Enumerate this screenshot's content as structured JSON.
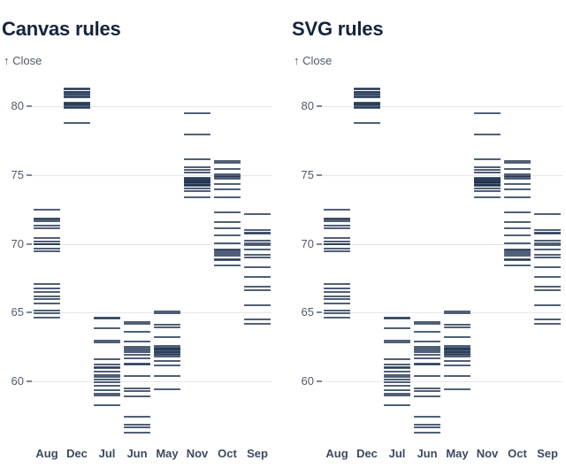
{
  "page": {
    "background": "#ffffff"
  },
  "colors": {
    "title": "#15233c",
    "axis_text": "#4f5a6d",
    "month_label": "#3c4a60",
    "gridline": "#e4e7ec",
    "tick_dash": "#7e8795",
    "tick_mark": "#1f3350",
    "tick_opacity": 0.78
  },
  "chart_data": [
    {
      "type": "tick",
      "title": "Canvas rules",
      "ylabel": "↑ Close",
      "renderer": "canvas",
      "grid": true,
      "ylim": [
        56,
        82
      ],
      "yticks": [
        60,
        65,
        70,
        75,
        80
      ],
      "categories": [
        "Aug",
        "Dec",
        "Jul",
        "Jun",
        "May",
        "Nov",
        "Oct",
        "Sep"
      ],
      "values_by_month": {
        "Aug": [
          72.5,
          71.85,
          71.8,
          71.65,
          71.35,
          71.1,
          70.45,
          70.15,
          70.0,
          69.95,
          69.65,
          69.45,
          67.05,
          66.75,
          66.5,
          66.2,
          65.95,
          65.65,
          65.15,
          64.95,
          64.65
        ],
        "Dec": [
          81.3,
          81.25,
          81.05,
          81.0,
          80.9,
          80.85,
          80.7,
          80.65,
          80.25,
          80.2,
          80.1,
          80.05,
          79.95,
          79.9,
          78.75
        ],
        "Jul": [
          64.65,
          64.55,
          63.85,
          62.95,
          62.8,
          61.6,
          61.25,
          61.0,
          60.95,
          60.7,
          60.45,
          60.3,
          60.15,
          59.95,
          59.65,
          59.35,
          59.1,
          58.95,
          58.25
        ],
        "Jun": [
          64.3,
          64.15,
          63.6,
          62.9,
          62.5,
          62.35,
          62.25,
          62.1,
          61.95,
          61.65,
          61.3,
          61.25,
          60.4,
          59.5,
          59.3,
          58.9,
          57.45,
          56.85,
          56.65,
          56.3
        ],
        "May": [
          65.05,
          64.95,
          64.1,
          63.95,
          63.2,
          62.55,
          62.45,
          62.4,
          62.3,
          62.25,
          62.15,
          62.1,
          62.0,
          61.9,
          61.8,
          61.45,
          61.15,
          60.4,
          59.45
        ],
        "Nov": [
          79.5,
          77.95,
          76.15,
          75.55,
          75.35,
          75.15,
          74.8,
          74.75,
          74.65,
          74.6,
          74.55,
          74.5,
          74.45,
          74.4,
          74.3,
          74.25,
          74.2,
          74.0,
          73.8,
          73.4
        ],
        "Oct": [
          76.0,
          75.9,
          75.45,
          75.05,
          74.95,
          74.85,
          74.75,
          74.35,
          73.95,
          73.35,
          72.3,
          71.6,
          71.1,
          70.6,
          70.05,
          69.6,
          69.5,
          69.4,
          69.25,
          69.1,
          68.9,
          68.8,
          68.45
        ],
        "Sep": [
          72.15,
          71.0,
          70.8,
          70.75,
          70.2,
          70.05,
          69.9,
          69.6,
          69.2,
          69.0,
          68.3,
          67.6,
          66.85,
          66.6,
          65.5,
          64.5,
          64.2
        ]
      }
    },
    {
      "type": "tick",
      "title": "SVG rules",
      "ylabel": "↑ Close",
      "renderer": "svg",
      "grid": true,
      "ylim": [
        56,
        82
      ],
      "yticks": [
        60,
        65,
        70,
        75,
        80
      ],
      "categories": [
        "Aug",
        "Dec",
        "Jul",
        "Jun",
        "May",
        "Nov",
        "Oct",
        "Sep"
      ],
      "values_by_month": {
        "Aug": [
          72.5,
          71.85,
          71.8,
          71.65,
          71.35,
          71.1,
          70.45,
          70.15,
          70.0,
          69.95,
          69.65,
          69.45,
          67.05,
          66.75,
          66.5,
          66.2,
          65.95,
          65.65,
          65.15,
          64.95,
          64.65
        ],
        "Dec": [
          81.3,
          81.25,
          81.05,
          81.0,
          80.9,
          80.85,
          80.7,
          80.65,
          80.25,
          80.2,
          80.1,
          80.05,
          79.95,
          79.9,
          78.75
        ],
        "Jul": [
          64.65,
          64.55,
          63.85,
          62.95,
          62.8,
          61.6,
          61.25,
          61.0,
          60.95,
          60.7,
          60.45,
          60.3,
          60.15,
          59.95,
          59.65,
          59.35,
          59.1,
          58.95,
          58.25
        ],
        "Jun": [
          64.3,
          64.15,
          63.6,
          62.9,
          62.5,
          62.35,
          62.25,
          62.1,
          61.95,
          61.65,
          61.3,
          61.25,
          60.4,
          59.5,
          59.3,
          58.9,
          57.45,
          56.85,
          56.65,
          56.3
        ],
        "May": [
          65.05,
          64.95,
          64.1,
          63.95,
          63.2,
          62.55,
          62.45,
          62.4,
          62.3,
          62.25,
          62.15,
          62.1,
          62.0,
          61.9,
          61.8,
          61.45,
          61.15,
          60.4,
          59.45
        ],
        "Nov": [
          79.5,
          77.95,
          76.15,
          75.55,
          75.35,
          75.15,
          74.8,
          74.75,
          74.65,
          74.6,
          74.55,
          74.5,
          74.45,
          74.4,
          74.3,
          74.25,
          74.2,
          74.0,
          73.8,
          73.4
        ],
        "Oct": [
          76.0,
          75.9,
          75.45,
          75.05,
          74.95,
          74.85,
          74.75,
          74.35,
          73.95,
          73.35,
          72.3,
          71.6,
          71.1,
          70.6,
          70.05,
          69.6,
          69.5,
          69.4,
          69.25,
          69.1,
          68.9,
          68.8,
          68.45
        ],
        "Sep": [
          72.15,
          71.0,
          70.8,
          70.75,
          70.2,
          70.05,
          69.9,
          69.6,
          69.2,
          69.0,
          68.3,
          67.6,
          66.85,
          66.6,
          65.5,
          64.5,
          64.2
        ]
      }
    }
  ]
}
